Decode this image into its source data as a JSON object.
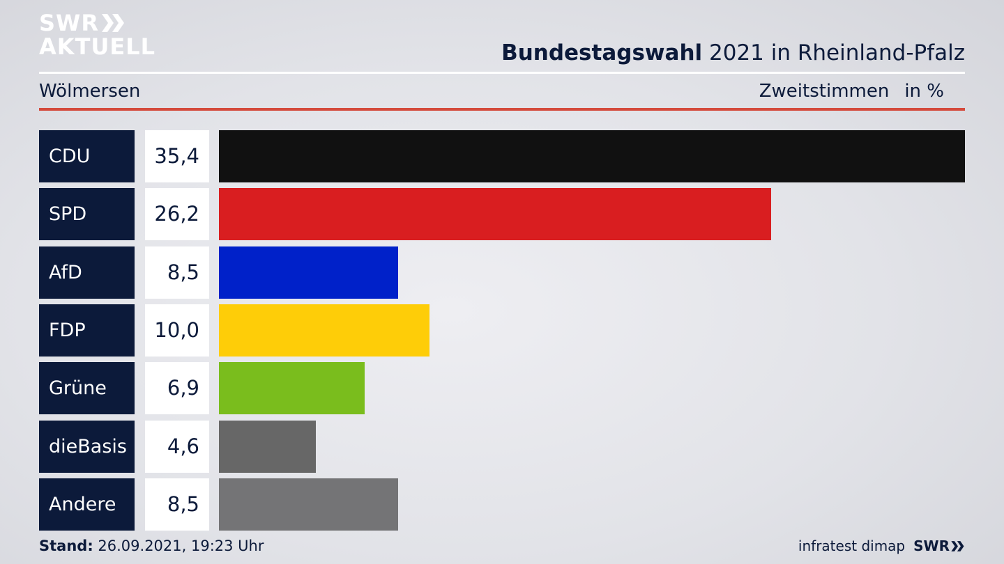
{
  "logo": {
    "line1": "SWR",
    "line2": "AKTUELL"
  },
  "header": {
    "title_bold": "Bundestagswahl",
    "title_rest": " 2021 in Rheinland-Pfalz",
    "region": "Wölmersen",
    "measure": "Zweitstimmen",
    "unit": "in %"
  },
  "chart_data": {
    "type": "bar",
    "orientation": "horizontal",
    "categories": [
      "CDU",
      "SPD",
      "AfD",
      "FDP",
      "Grüne",
      "dieBasis",
      "Andere"
    ],
    "values": [
      35.4,
      26.2,
      8.5,
      10.0,
      6.9,
      4.6,
      8.5
    ],
    "value_labels": [
      "35,4",
      "26,2",
      "8,5",
      "10,0",
      "6,9",
      "4,6",
      "8,5"
    ],
    "colors": [
      "#111111",
      "#d91e20",
      "#0021c9",
      "#fecd08",
      "#7abd1d",
      "#676767",
      "#747476"
    ],
    "xlim": [
      0,
      35.4
    ],
    "grid": false
  },
  "footer": {
    "stand_label": "Stand:",
    "stand_value": " 26.09.2021, 19:23 Uhr",
    "source": "infratest dimap",
    "brand": "SWR"
  }
}
